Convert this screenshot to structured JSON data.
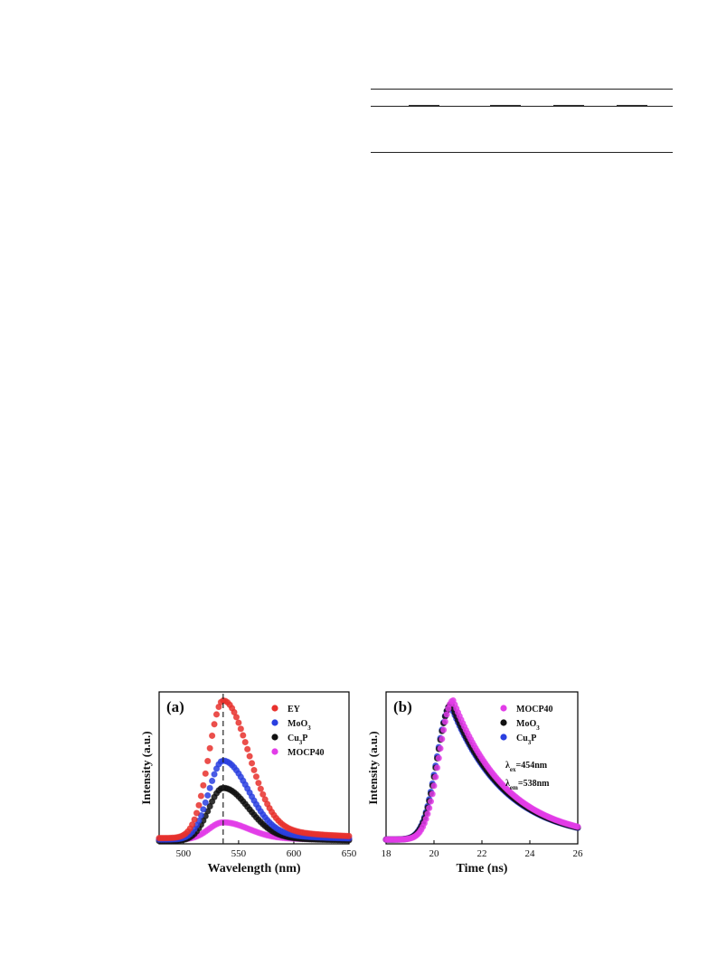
{
  "chart_data": [
    {
      "type": "scatter",
      "panel_label": "(a)",
      "xlabel": "Wavelength (nm)",
      "ylabel": "Intensity (a.u.)",
      "xlim": [
        478,
        650
      ],
      "ylim": [
        0,
        1.06
      ],
      "x_ticks": [
        "500",
        "550",
        "600",
        "650"
      ],
      "y_ticks_labeled": false,
      "grid": false,
      "legend_position": "top-right",
      "reference_line": {
        "style": "dashed",
        "x": 536
      },
      "series": [
        {
          "name": "EY",
          "label_main": "EY",
          "label_sub": "",
          "label_tail": "",
          "color": "#e8312d",
          "peak_x": 536,
          "peak_y": 1.0,
          "baseline": 0.04
        },
        {
          "name": "MoO3",
          "label_main": "MoO",
          "label_sub": "3",
          "label_tail": "",
          "color": "#2a3fe0",
          "peak_x": 536,
          "peak_y": 0.58,
          "baseline": 0.03
        },
        {
          "name": "Cu3P",
          "label_main": "Cu",
          "label_sub": "3",
          "label_tail": "P",
          "color": "#111111",
          "peak_x": 536,
          "peak_y": 0.39,
          "baseline": 0.02
        },
        {
          "name": "MOCP40",
          "label_main": "MOCP40",
          "label_sub": "",
          "label_tail": "",
          "color": "#e23ce8",
          "peak_x": 536,
          "peak_y": 0.15,
          "baseline": 0.03
        }
      ]
    },
    {
      "type": "scatter",
      "panel_label": "(b)",
      "xlabel": "Time (ns)",
      "ylabel": "Intensity (a.u.)",
      "xlim": [
        18,
        26
      ],
      "ylim": [
        0,
        1.06
      ],
      "x_ticks": [
        "18",
        "20",
        "22",
        "24",
        "26"
      ],
      "y_ticks_labeled": false,
      "grid": false,
      "legend_position": "top-right",
      "annotations": [
        {
          "symbol": "λ",
          "sub": "ex",
          "value": "=454nm"
        },
        {
          "symbol": "λ",
          "sub": "em",
          "value": "=538nm"
        }
      ],
      "series": [
        {
          "name": "MOCP40",
          "label_main": "MOCP40",
          "label_sub": "",
          "label_tail": "",
          "color": "#e23ce8",
          "peak_x": 20.8,
          "peak_y": 1.0,
          "baseline": 0.03
        },
        {
          "name": "MoO3",
          "label_main": "MoO",
          "label_sub": "3",
          "label_tail": "",
          "color": "#111111",
          "peak_x": 20.72,
          "peak_y": 0.975,
          "baseline": 0.03
        },
        {
          "name": "Cu3P",
          "label_main": "Cu",
          "label_sub": "3",
          "label_tail": "P",
          "color": "#2a3fe0",
          "peak_x": 20.7,
          "peak_y": 0.965,
          "baseline": 0.03
        }
      ]
    }
  ]
}
